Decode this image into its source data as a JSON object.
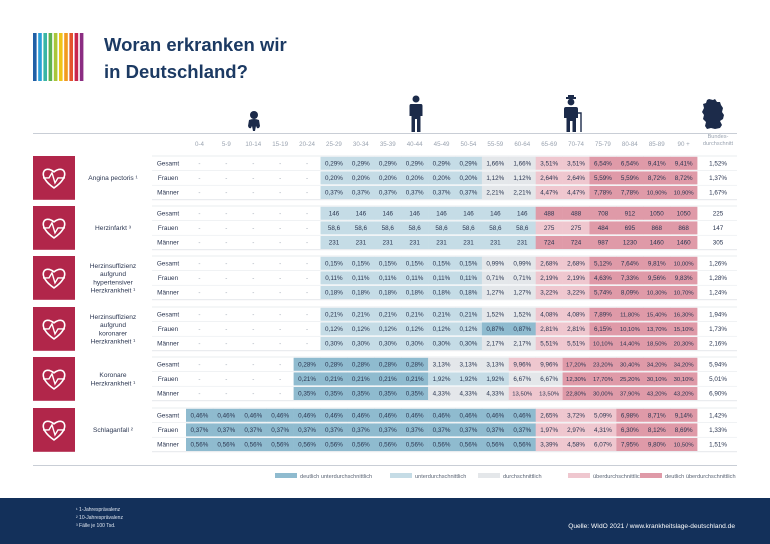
{
  "title_line1": "Woran erkranken wir",
  "title_line2": "in Deutschland?",
  "stripe_colors": [
    "#1f5fa6",
    "#2a9fd8",
    "#39b6a6",
    "#5fb24f",
    "#a8c63a",
    "#f0c419",
    "#f29a1f",
    "#e3522c",
    "#c8254c",
    "#8b2d82"
  ],
  "age_groups": [
    "0-4",
    "5-9",
    "10-14",
    "15-19",
    "20-24",
    "25-29",
    "30-34",
    "35-39",
    "40-44",
    "45-49",
    "50-54",
    "55-59",
    "60-64",
    "65-69",
    "70-74",
    "75-79",
    "80-84",
    "85-89",
    "90 +"
  ],
  "bund_header_l1": "Bundes-",
  "bund_header_l2": "durchschnitt",
  "row_labels": [
    "Gesamt",
    "Frauen",
    "Männer"
  ],
  "colors": {
    "deutlich_unter": "#8fbbcf",
    "unter": "#c5dce6",
    "durch": "#e4e7ea",
    "ueber": "#efc7cf",
    "deutlich_ueber": "#df9aa8",
    "disease_icon_bg": "#b1264a"
  },
  "chart_data": {
    "type": "table",
    "columns": [
      "0-4",
      "5-9",
      "10-14",
      "15-19",
      "20-24",
      "25-29",
      "30-34",
      "35-39",
      "40-44",
      "45-49",
      "50-54",
      "55-59",
      "60-64",
      "65-69",
      "70-74",
      "75-79",
      "80-84",
      "85-89",
      "90 +",
      "Bundes-durchschnitt"
    ],
    "diseases": [
      {
        "name_lines": [
          "Angina pectoris ¹"
        ],
        "rows": [
          {
            "label": "Gesamt",
            "values": [
              "-",
              "-",
              "-",
              "-",
              "-",
              "0,29%",
              "0,29%",
              "0,29%",
              "0,29%",
              "0,29%",
              "0,29%",
              "1,66%",
              "1,66%",
              "3,51%",
              "3,51%",
              "6,54%",
              "6,54%",
              "9,41%",
              "9,41%"
            ],
            "levels": [
              0,
              0,
              0,
              0,
              0,
              2,
              2,
              2,
              2,
              2,
              2,
              3,
              3,
              4,
              4,
              5,
              5,
              5,
              5
            ],
            "avg": "1,52%"
          },
          {
            "label": "Frauen",
            "values": [
              "-",
              "-",
              "-",
              "-",
              "-",
              "0,20%",
              "0,20%",
              "0,20%",
              "0,20%",
              "0,20%",
              "0,20%",
              "1,12%",
              "1,12%",
              "2,64%",
              "2,64%",
              "5,59%",
              "5,59%",
              "8,72%",
              "8,72%"
            ],
            "levels": [
              0,
              0,
              0,
              0,
              0,
              2,
              2,
              2,
              2,
              2,
              2,
              3,
              3,
              4,
              4,
              5,
              5,
              5,
              5
            ],
            "avg": "1,37%"
          },
          {
            "label": "Männer",
            "values": [
              "-",
              "-",
              "-",
              "-",
              "-",
              "0,37%",
              "0,37%",
              "0,37%",
              "0,37%",
              "0,37%",
              "0,37%",
              "2,21%",
              "2,21%",
              "4,47%",
              "4,47%",
              "7,78%",
              "7,78%",
              "10,90%",
              "10,90%"
            ],
            "levels": [
              0,
              0,
              0,
              0,
              0,
              2,
              2,
              2,
              2,
              2,
              2,
              3,
              3,
              4,
              4,
              5,
              5,
              5,
              5
            ],
            "avg": "1,67%"
          }
        ]
      },
      {
        "name_lines": [
          "Herzinfarkt ³"
        ],
        "rows": [
          {
            "label": "Gesamt",
            "values": [
              "-",
              "-",
              "-",
              "-",
              "-",
              "146",
              "146",
              "146",
              "146",
              "146",
              "146",
              "146",
              "146",
              "488",
              "488",
              "708",
              "912",
              "1050",
              "1050"
            ],
            "levels": [
              0,
              0,
              0,
              0,
              0,
              2,
              2,
              2,
              2,
              2,
              2,
              2,
              2,
              5,
              5,
              5,
              5,
              5,
              5
            ],
            "avg": "225"
          },
          {
            "label": "Frauen",
            "values": [
              "-",
              "-",
              "-",
              "-",
              "-",
              "58,6",
              "58,6",
              "58,6",
              "58,6",
              "58,6",
              "58,6",
              "58,6",
              "58,6",
              "275",
              "275",
              "484",
              "695",
              "868",
              "868"
            ],
            "levels": [
              0,
              0,
              0,
              0,
              0,
              2,
              2,
              2,
              2,
              2,
              2,
              2,
              2,
              4,
              4,
              5,
              5,
              5,
              5
            ],
            "avg": "147"
          },
          {
            "label": "Männer",
            "values": [
              "-",
              "-",
              "-",
              "-",
              "-",
              "231",
              "231",
              "231",
              "231",
              "231",
              "231",
              "231",
              "231",
              "724",
              "724",
              "987",
              "1230",
              "1460",
              "1460"
            ],
            "levels": [
              0,
              0,
              0,
              0,
              0,
              2,
              2,
              2,
              2,
              2,
              2,
              2,
              2,
              5,
              5,
              5,
              5,
              5,
              5
            ],
            "avg": "305"
          }
        ]
      },
      {
        "name_lines": [
          "Herzinsuffizienz",
          "aufgrund",
          "hypertensiver",
          "Herzkrankheit ¹"
        ],
        "rows": [
          {
            "label": "Gesamt",
            "values": [
              "-",
              "-",
              "-",
              "-",
              "-",
              "0,15%",
              "0,15%",
              "0,15%",
              "0,15%",
              "0,15%",
              "0,15%",
              "0,99%",
              "0,99%",
              "2,68%",
              "2,68%",
              "5,12%",
              "7,64%",
              "9,81%",
              "10,00%"
            ],
            "levels": [
              0,
              0,
              0,
              0,
              0,
              2,
              2,
              2,
              2,
              2,
              2,
              3,
              3,
              4,
              4,
              5,
              5,
              5,
              5
            ],
            "avg": "1,26%"
          },
          {
            "label": "Frauen",
            "values": [
              "-",
              "-",
              "-",
              "-",
              "-",
              "0,11%",
              "0,11%",
              "0,11%",
              "0,11%",
              "0,11%",
              "0,11%",
              "0,71%",
              "0,71%",
              "2,19%",
              "2,19%",
              "4,63%",
              "7,33%",
              "9,56%",
              "9,83%"
            ],
            "levels": [
              0,
              0,
              0,
              0,
              0,
              2,
              2,
              2,
              2,
              2,
              2,
              3,
              3,
              4,
              4,
              5,
              5,
              5,
              5
            ],
            "avg": "1,28%"
          },
          {
            "label": "Männer",
            "values": [
              "-",
              "-",
              "-",
              "-",
              "-",
              "0,18%",
              "0,18%",
              "0,18%",
              "0,18%",
              "0,18%",
              "0,18%",
              "1,27%",
              "1,27%",
              "3,22%",
              "3,22%",
              "5,74%",
              "8,09%",
              "10,30%",
              "10,70%"
            ],
            "levels": [
              0,
              0,
              0,
              0,
              0,
              2,
              2,
              2,
              2,
              2,
              2,
              3,
              3,
              4,
              4,
              5,
              5,
              5,
              5
            ],
            "avg": "1,24%"
          }
        ]
      },
      {
        "name_lines": [
          "Herzinsuffizienz",
          "aufgrund",
          "koronarer",
          "Herzkrankheit ¹"
        ],
        "rows": [
          {
            "label": "Gesamt",
            "values": [
              "-",
              "-",
              "-",
              "-",
              "-",
              "0,21%",
              "0,21%",
              "0,21%",
              "0,21%",
              "0,21%",
              "0,21%",
              "1,52%",
              "1,52%",
              "4,08%",
              "4,08%",
              "7,89%",
              "11,80%",
              "15,40%",
              "16,30%"
            ],
            "levels": [
              0,
              0,
              0,
              0,
              0,
              2,
              2,
              2,
              2,
              2,
              2,
              3,
              3,
              4,
              4,
              5,
              5,
              5,
              5
            ],
            "avg": "1,94%"
          },
          {
            "label": "Frauen",
            "values": [
              "-",
              "-",
              "-",
              "-",
              "-",
              "0,12%",
              "0,12%",
              "0,12%",
              "0,12%",
              "0,12%",
              "0,12%",
              "0,87%",
              "0,87%",
              "2,81%",
              "2,81%",
              "6,15%",
              "10,10%",
              "13,70%",
              "15,10%"
            ],
            "levels": [
              0,
              0,
              0,
              0,
              0,
              2,
              2,
              2,
              2,
              2,
              2,
              1,
              1,
              4,
              4,
              5,
              5,
              5,
              5
            ],
            "avg": "1,73%"
          },
          {
            "label": "Männer",
            "values": [
              "-",
              "-",
              "-",
              "-",
              "-",
              "0,30%",
              "0,30%",
              "0,30%",
              "0,30%",
              "0,30%",
              "0,30%",
              "2,17%",
              "2,17%",
              "5,51%",
              "5,51%",
              "10,10%",
              "14,40%",
              "18,50%",
              "20,30%"
            ],
            "levels": [
              0,
              0,
              0,
              0,
              0,
              2,
              2,
              2,
              2,
              2,
              2,
              3,
              3,
              4,
              4,
              5,
              5,
              5,
              5
            ],
            "avg": "2,16%"
          }
        ]
      },
      {
        "name_lines": [
          "Koronare",
          "Herzkrankheit ¹"
        ],
        "rows": [
          {
            "label": "Gesamt",
            "values": [
              "-",
              "-",
              "-",
              "-",
              "0,28%",
              "0,28%",
              "0,28%",
              "0,28%",
              "0,28%",
              "3,13%",
              "3,13%",
              "3,13%",
              "9,96%",
              "9,96%",
              "17,20%",
              "23,20%",
              "30,40%",
              "34,20%",
              "34,20%"
            ],
            "levels": [
              0,
              0,
              0,
              0,
              1,
              1,
              1,
              1,
              1,
              3,
              3,
              3,
              4,
              4,
              5,
              5,
              5,
              5,
              5
            ],
            "avg": "5,94%"
          },
          {
            "label": "Frauen",
            "values": [
              "-",
              "-",
              "-",
              "-",
              "0,21%",
              "0,21%",
              "0,21%",
              "0,21%",
              "0,21%",
              "1,92%",
              "1,92%",
              "1,92%",
              "6,67%",
              "6,67%",
              "12,30%",
              "17,70%",
              "25,20%",
              "30,10%",
              "30,10%"
            ],
            "levels": [
              0,
              0,
              0,
              0,
              1,
              1,
              1,
              1,
              1,
              2,
              2,
              2,
              3,
              3,
              5,
              5,
              5,
              5,
              5
            ],
            "avg": "5,01%"
          },
          {
            "label": "Männer",
            "values": [
              "-",
              "-",
              "-",
              "-",
              "0,35%",
              "0,35%",
              "0,35%",
              "0,35%",
              "0,35%",
              "4,33%",
              "4,33%",
              "4,33%",
              "13,50%",
              "13,50%",
              "22,80%",
              "30,00%",
              "37,90%",
              "43,20%",
              "43,20%"
            ],
            "levels": [
              0,
              0,
              0,
              0,
              1,
              1,
              1,
              1,
              1,
              3,
              3,
              3,
              4,
              4,
              5,
              5,
              5,
              5,
              5
            ],
            "avg": "6,90%"
          }
        ]
      },
      {
        "name_lines": [
          "Schlaganfall ²"
        ],
        "rows": [
          {
            "label": "Gesamt",
            "values": [
              "0,46%",
              "0,46%",
              "0,46%",
              "0,46%",
              "0,46%",
              "0,46%",
              "0,46%",
              "0,46%",
              "0,46%",
              "0,46%",
              "0,46%",
              "0,46%",
              "0,46%",
              "2,65%",
              "3,72%",
              "5,09%",
              "6,98%",
              "8,71%",
              "9,14%"
            ],
            "levels": [
              1,
              1,
              1,
              1,
              1,
              1,
              1,
              1,
              1,
              1,
              1,
              1,
              1,
              4,
              4,
              4,
              5,
              5,
              5
            ],
            "avg": "1,42%"
          },
          {
            "label": "Frauen",
            "values": [
              "0,37%",
              "0,37%",
              "0,37%",
              "0,37%",
              "0,37%",
              "0,37%",
              "0,37%",
              "0,37%",
              "0,37%",
              "0,37%",
              "0,37%",
              "0,37%",
              "0,37%",
              "1,97%",
              "2,97%",
              "4,31%",
              "6,30%",
              "8,12%",
              "8,69%"
            ],
            "levels": [
              1,
              1,
              1,
              1,
              1,
              1,
              1,
              1,
              1,
              1,
              1,
              1,
              1,
              4,
              4,
              4,
              5,
              5,
              5
            ],
            "avg": "1,33%"
          },
          {
            "label": "Männer",
            "values": [
              "0,56%",
              "0,56%",
              "0,56%",
              "0,56%",
              "0,56%",
              "0,56%",
              "0,56%",
              "0,56%",
              "0,56%",
              "0,56%",
              "0,56%",
              "0,56%",
              "0,56%",
              "3,39%",
              "4,58%",
              "6,07%",
              "7,95%",
              "9,80%",
              "10,50%"
            ],
            "levels": [
              1,
              1,
              1,
              1,
              1,
              1,
              1,
              1,
              1,
              1,
              1,
              1,
              1,
              4,
              4,
              4,
              5,
              5,
              5
            ],
            "avg": "1,51%"
          }
        ]
      }
    ]
  },
  "legend": [
    {
      "label": "deutlich unterdurchschnittlich",
      "color": "#8fbbcf"
    },
    {
      "label": "unterdurchschnittlich",
      "color": "#c5dce6"
    },
    {
      "label": "durchschnittlich",
      "color": "#e4e7ea"
    },
    {
      "label": "überdurchschnittlich",
      "color": "#efc7cf"
    },
    {
      "label": "deutlich überdurchschnittlich",
      "color": "#df9aa8"
    }
  ],
  "footnotes": [
    "¹ 1-Jahresprävalenz",
    "² 10-Jahresprävalenz",
    "³ Fälle je 100 Tsd."
  ],
  "source": "Quelle:  WIdO 2021 / www.krankheitslage-deutschland.de"
}
